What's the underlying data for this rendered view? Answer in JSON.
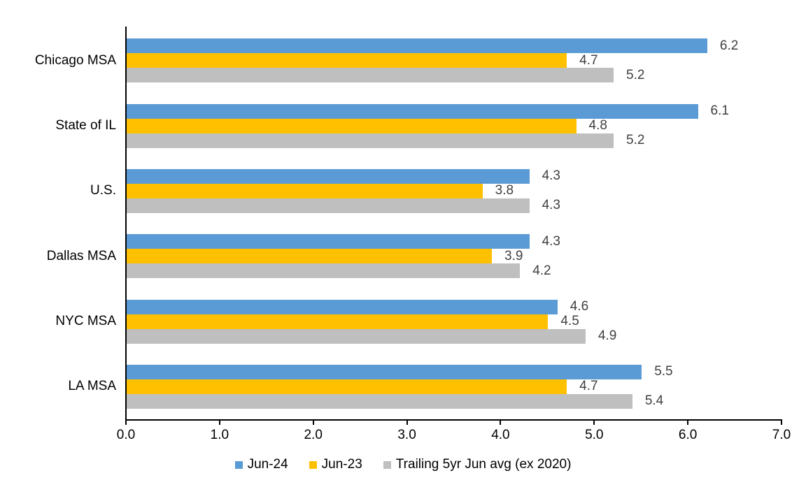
{
  "chart_data": {
    "type": "bar",
    "orientation": "horizontal",
    "title": "",
    "xlabel": "",
    "ylabel": "",
    "categories": [
      "Chicago MSA",
      "State of IL",
      "U.S.",
      "Dallas MSA",
      "NYC MSA",
      "LA MSA"
    ],
    "series": [
      {
        "name": "Jun-24",
        "color": "#5B9BD5",
        "values": [
          6.2,
          6.1,
          4.3,
          4.3,
          4.6,
          5.5
        ]
      },
      {
        "name": "Jun-23",
        "color": "#FFC000",
        "values": [
          4.7,
          4.8,
          3.8,
          3.9,
          4.5,
          4.7
        ]
      },
      {
        "name": "Trailing 5yr Jun avg (ex 2020)",
        "color": "#BFBFBF",
        "values": [
          5.2,
          5.2,
          4.3,
          4.2,
          4.9,
          5.4
        ]
      }
    ],
    "xlim": [
      0.0,
      7.0
    ],
    "xticks": [
      "0.0",
      "1.0",
      "2.0",
      "3.0",
      "4.0",
      "5.0",
      "6.0",
      "7.0"
    ],
    "grid": false,
    "data_labels": true,
    "data_label_decimals": 1,
    "legend_position": "bottom",
    "colors": {
      "axis": "#000000",
      "data_label": "#404040",
      "tick_label": "#000000",
      "category_label": "#000000",
      "background": "#ffffff"
    }
  }
}
